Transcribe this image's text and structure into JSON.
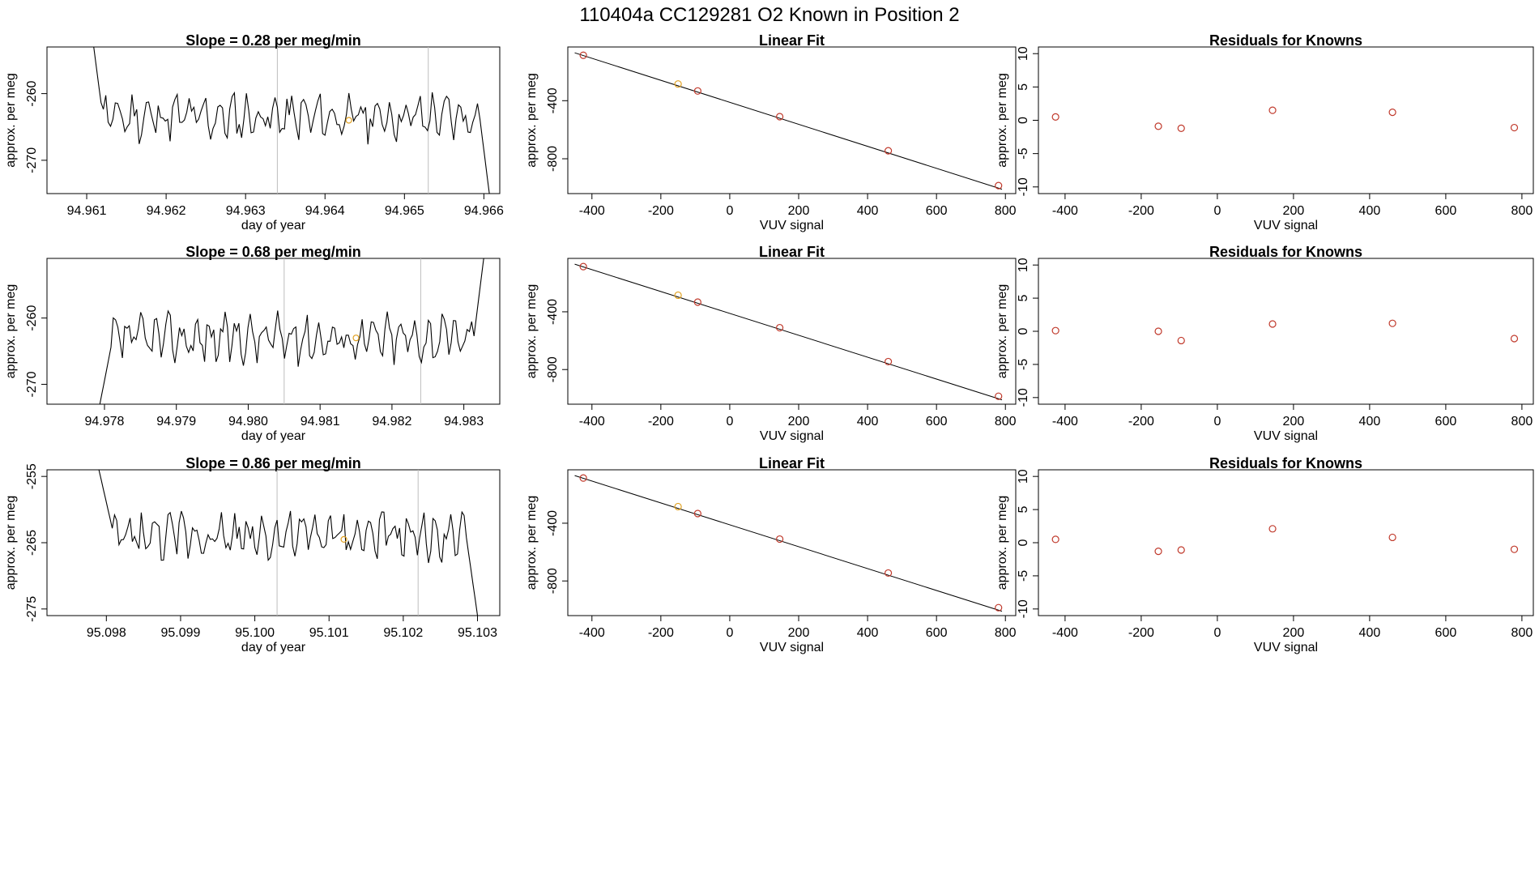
{
  "title": "110404a      CC129281    O2 Known in Position  2",
  "colors": {
    "trace": "#000000",
    "frame": "#000000",
    "guide_line": "#bdbdbd",
    "known_marker": "#e0a020",
    "fit_marker": "#c0392b",
    "fit_line": "#000000"
  },
  "rows": [
    {
      "trace": {
        "title": "Slope =  0.28  per meg/min",
        "xlabel": "day of year",
        "ylabel": "approx. per meg",
        "xlim": [
          94.9605,
          94.9662
        ],
        "ylim": [
          -275,
          -253
        ],
        "xticks": [
          "94.961",
          "94.962",
          "94.963",
          "94.964",
          "94.965",
          "94.966"
        ],
        "yticks": [
          "-260",
          "-270"
        ],
        "guides": [
          94.9634,
          94.9653
        ],
        "start": 94.961,
        "end": 94.9661,
        "base": -263.5,
        "seed": 11,
        "head": -245,
        "tail": -278,
        "marker": {
          "x": 94.9643,
          "y": -264
        }
      },
      "fit": {
        "title": "Linear Fit",
        "xlabel": "VUV signal",
        "ylabel": "approx. per meg",
        "xlim": [
          -470,
          830
        ],
        "ylim": [
          -1040,
          -30
        ],
        "xticks": [
          "-400",
          "-200",
          "0",
          "200",
          "400",
          "600",
          "800"
        ],
        "yticks": [
          "-400",
          "-800"
        ],
        "line": [
          [
            -450,
            -70
          ],
          [
            790,
            -1010
          ]
        ],
        "points": [
          {
            "x": -425,
            "y": -87,
            "kind": "fit"
          },
          {
            "x": -150,
            "y": -285,
            "kind": "known"
          },
          {
            "x": -93,
            "y": -333,
            "kind": "fit"
          },
          {
            "x": 145,
            "y": -510,
            "kind": "fit"
          },
          {
            "x": 460,
            "y": -745,
            "kind": "fit"
          },
          {
            "x": 780,
            "y": -985,
            "kind": "fit"
          }
        ]
      },
      "resid": {
        "title": "Residuals for Knowns",
        "xlabel": "VUV signal",
        "ylabel": "approx. per meg",
        "xlim": [
          -470,
          830
        ],
        "ylim": [
          -11,
          11
        ],
        "xticks": [
          "-400",
          "-200",
          "0",
          "200",
          "400",
          "600",
          "800"
        ],
        "yticks": [
          "10",
          "5",
          "0",
          "-5",
          "-10"
        ],
        "points": [
          {
            "x": -425,
            "y": 0.5
          },
          {
            "x": -155,
            "y": -0.9
          },
          {
            "x": -95,
            "y": -1.2
          },
          {
            "x": 145,
            "y": 1.5
          },
          {
            "x": 460,
            "y": 1.2
          },
          {
            "x": 780,
            "y": -1.1
          }
        ]
      }
    },
    {
      "trace": {
        "title": "Slope =  0.68  per meg/min",
        "xlabel": "day of year",
        "ylabel": "approx. per meg",
        "xlim": [
          94.9772,
          94.9835
        ],
        "ylim": [
          -273,
          -251
        ],
        "xticks": [
          "94.978",
          "94.979",
          "94.980",
          "94.981",
          "94.982",
          "94.983"
        ],
        "yticks": [
          "-260",
          "-270"
        ],
        "guides": [
          94.9805,
          94.9824
        ],
        "start": 94.9779,
        "end": 94.9833,
        "base": -263,
        "seed": 37,
        "head": -275,
        "tail": -249,
        "marker": {
          "x": 94.9815,
          "y": -263
        }
      },
      "fit": {
        "title": "Linear Fit",
        "xlabel": "VUV signal",
        "ylabel": "approx. per meg",
        "xlim": [
          -470,
          830
        ],
        "ylim": [
          -1040,
          -30
        ],
        "xticks": [
          "-400",
          "-200",
          "0",
          "200",
          "400",
          "600",
          "800"
        ],
        "yticks": [
          "-400",
          "-800"
        ],
        "line": [
          [
            -450,
            -70
          ],
          [
            790,
            -1010
          ]
        ],
        "points": [
          {
            "x": -425,
            "y": -87,
            "kind": "fit"
          },
          {
            "x": -150,
            "y": -285,
            "kind": "known"
          },
          {
            "x": -93,
            "y": -333,
            "kind": "fit"
          },
          {
            "x": 145,
            "y": -510,
            "kind": "fit"
          },
          {
            "x": 460,
            "y": -745,
            "kind": "fit"
          },
          {
            "x": 780,
            "y": -985,
            "kind": "fit"
          }
        ]
      },
      "resid": {
        "title": "Residuals for Knowns",
        "xlabel": "VUV signal",
        "ylabel": "approx. per meg",
        "xlim": [
          -470,
          830
        ],
        "ylim": [
          -11,
          11
        ],
        "xticks": [
          "-400",
          "-200",
          "0",
          "200",
          "400",
          "600",
          "800"
        ],
        "yticks": [
          "10",
          "5",
          "0",
          "-5",
          "-10"
        ],
        "points": [
          {
            "x": -425,
            "y": 0.1
          },
          {
            "x": -155,
            "y": 0.0
          },
          {
            "x": -95,
            "y": -1.4
          },
          {
            "x": 145,
            "y": 1.1
          },
          {
            "x": 460,
            "y": 1.2
          },
          {
            "x": 780,
            "y": -1.1
          }
        ]
      }
    },
    {
      "trace": {
        "title": "Slope =  0.86  per meg/min",
        "xlabel": "day of year",
        "ylabel": "approx. per meg",
        "xlim": [
          95.0972,
          95.1033
        ],
        "ylim": [
          -276,
          -254
        ],
        "xticks": [
          "95.098",
          "95.099",
          "95.100",
          "95.101",
          "95.102",
          "95.103"
        ],
        "yticks": [
          "-255",
          "-265",
          "-275"
        ],
        "guides": [
          95.1003,
          95.1022
        ],
        "start": 95.0979,
        "end": 95.103,
        "base": -264,
        "seed": 73,
        "head": -254,
        "tail": -276,
        "marker": {
          "x": 95.1012,
          "y": -264.5
        }
      },
      "fit": {
        "title": "Linear Fit",
        "xlabel": "VUV signal",
        "ylabel": "approx. per meg",
        "xlim": [
          -470,
          830
        ],
        "ylim": [
          -1040,
          -30
        ],
        "xticks": [
          "-400",
          "-200",
          "0",
          "200",
          "400",
          "600",
          "800"
        ],
        "yticks": [
          "-400",
          "-800"
        ],
        "line": [
          [
            -450,
            -70
          ],
          [
            790,
            -1010
          ]
        ],
        "points": [
          {
            "x": -425,
            "y": -87,
            "kind": "fit"
          },
          {
            "x": -150,
            "y": -285,
            "kind": "known"
          },
          {
            "x": -93,
            "y": -333,
            "kind": "fit"
          },
          {
            "x": 145,
            "y": -510,
            "kind": "fit"
          },
          {
            "x": 460,
            "y": -745,
            "kind": "fit"
          },
          {
            "x": 780,
            "y": -985,
            "kind": "fit"
          }
        ]
      },
      "resid": {
        "title": "Residuals for Knowns",
        "xlabel": "VUV signal",
        "ylabel": "approx. per meg",
        "xlim": [
          -470,
          830
        ],
        "ylim": [
          -11,
          11
        ],
        "xticks": [
          "-400",
          "-200",
          "0",
          "200",
          "400",
          "600",
          "800"
        ],
        "yticks": [
          "10",
          "5",
          "0",
          "-5",
          "-10"
        ],
        "points": [
          {
            "x": -425,
            "y": 0.5
          },
          {
            "x": -155,
            "y": -1.3
          },
          {
            "x": -95,
            "y": -1.1
          },
          {
            "x": 145,
            "y": 2.1
          },
          {
            "x": 460,
            "y": 0.8
          },
          {
            "x": 780,
            "y": -1.0
          }
        ]
      }
    }
  ],
  "chart_data": [
    {
      "type": "line",
      "panel": "row1-trace",
      "title": "Slope =  0.28  per meg/min",
      "xlabel": "day of year",
      "ylabel": "approx. per meg",
      "xlim": [
        94.9605,
        94.9662
      ],
      "ylim": [
        -275,
        -253
      ],
      "series": [
        {
          "values_approx_baseline": -263.5
        }
      ]
    },
    {
      "type": "scatter",
      "panel": "row1-fit",
      "title": "Linear Fit",
      "xlabel": "VUV signal",
      "ylabel": "approx. per meg",
      "x": [
        -425,
        -150,
        -93,
        145,
        460,
        780
      ],
      "y": [
        -87,
        -285,
        -333,
        -510,
        -745,
        -985
      ]
    },
    {
      "type": "scatter",
      "panel": "row1-resid",
      "title": "Residuals for Knowns",
      "xlabel": "VUV signal",
      "ylabel": "approx. per meg",
      "x": [
        -425,
        -155,
        -95,
        145,
        460,
        780
      ],
      "y": [
        0.5,
        -0.9,
        -1.2,
        1.5,
        1.2,
        -1.1
      ]
    },
    {
      "type": "line",
      "panel": "row2-trace",
      "title": "Slope =  0.68  per meg/min",
      "xlabel": "day of year",
      "ylabel": "approx. per meg",
      "xlim": [
        94.9772,
        94.9835
      ],
      "ylim": [
        -273,
        -251
      ],
      "series": [
        {
          "values_approx_baseline": -263
        }
      ]
    },
    {
      "type": "scatter",
      "panel": "row2-fit",
      "title": "Linear Fit",
      "xlabel": "VUV signal",
      "ylabel": "approx. per meg",
      "x": [
        -425,
        -150,
        -93,
        145,
        460,
        780
      ],
      "y": [
        -87,
        -285,
        -333,
        -510,
        -745,
        -985
      ]
    },
    {
      "type": "scatter",
      "panel": "row2-resid",
      "title": "Residuals for Knowns",
      "xlabel": "VUV signal",
      "ylabel": "approx. per meg",
      "x": [
        -425,
        -155,
        -95,
        145,
        460,
        780
      ],
      "y": [
        0.1,
        0.0,
        -1.4,
        1.1,
        1.2,
        -1.1
      ]
    },
    {
      "type": "line",
      "panel": "row3-trace",
      "title": "Slope =  0.86  per meg/min",
      "xlabel": "day of year",
      "ylabel": "approx. per meg",
      "xlim": [
        95.0972,
        95.1033
      ],
      "ylim": [
        -276,
        -254
      ],
      "series": [
        {
          "values_approx_baseline": -264
        }
      ]
    },
    {
      "type": "scatter",
      "panel": "row3-fit",
      "title": "Linear Fit",
      "xlabel": "VUV signal",
      "ylabel": "approx. per meg",
      "x": [
        -425,
        -150,
        -93,
        145,
        460,
        780
      ],
      "y": [
        -87,
        -285,
        -333,
        -510,
        -745,
        -985
      ]
    },
    {
      "type": "scatter",
      "panel": "row3-resid",
      "title": "Residuals for Knowns",
      "xlabel": "VUV signal",
      "ylabel": "approx. per meg",
      "x": [
        -425,
        -155,
        -95,
        145,
        460,
        780
      ],
      "y": [
        0.5,
        -1.3,
        -1.1,
        2.1,
        0.8,
        -1.0
      ]
    }
  ]
}
